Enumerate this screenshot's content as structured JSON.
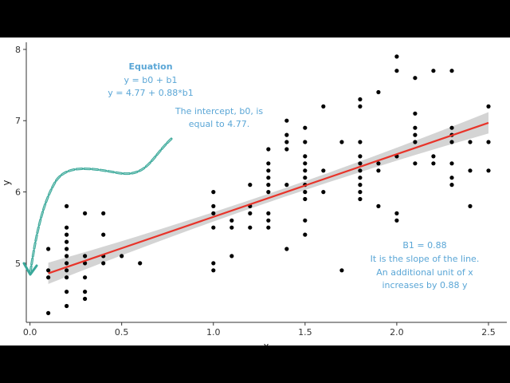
{
  "chart_data": {
    "type": "scatter",
    "title": "",
    "xlabel": "x",
    "ylabel": "y",
    "xlim": [
      -0.02,
      2.6
    ],
    "ylim": [
      4.17,
      8.1
    ],
    "x_ticks": [
      0.0,
      0.5,
      1.0,
      1.5,
      2.0,
      2.5
    ],
    "x_tick_labels": [
      "0.0",
      "0.5",
      "1.0",
      "1.5",
      "2.0",
      "2.5"
    ],
    "y_ticks": [
      5,
      6,
      7,
      8
    ],
    "y_tick_labels": [
      "5",
      "6",
      "7",
      "8"
    ],
    "grid": false,
    "points": [
      [
        0.1,
        4.3
      ],
      [
        0.1,
        4.8
      ],
      [
        0.1,
        4.9
      ],
      [
        0.1,
        5.2
      ],
      [
        0.2,
        4.4
      ],
      [
        0.2,
        4.6
      ],
      [
        0.2,
        4.8
      ],
      [
        0.2,
        4.9
      ],
      [
        0.2,
        5.0
      ],
      [
        0.2,
        5.1
      ],
      [
        0.2,
        5.2
      ],
      [
        0.2,
        5.3
      ],
      [
        0.2,
        5.4
      ],
      [
        0.2,
        5.5
      ],
      [
        0.2,
        5.8
      ],
      [
        0.3,
        4.5
      ],
      [
        0.3,
        4.6
      ],
      [
        0.3,
        4.8
      ],
      [
        0.3,
        5.0
      ],
      [
        0.3,
        5.1
      ],
      [
        0.3,
        5.7
      ],
      [
        0.4,
        5.0
      ],
      [
        0.4,
        5.1
      ],
      [
        0.4,
        5.4
      ],
      [
        0.4,
        5.7
      ],
      [
        0.5,
        5.1
      ],
      [
        0.6,
        5.0
      ],
      [
        1.0,
        4.9
      ],
      [
        1.0,
        5.0
      ],
      [
        1.0,
        5.5
      ],
      [
        1.0,
        5.7
      ],
      [
        1.0,
        5.8
      ],
      [
        1.0,
        6.0
      ],
      [
        1.1,
        5.1
      ],
      [
        1.1,
        5.5
      ],
      [
        1.1,
        5.6
      ],
      [
        1.2,
        5.5
      ],
      [
        1.2,
        5.7
      ],
      [
        1.2,
        5.8
      ],
      [
        1.2,
        6.1
      ],
      [
        1.3,
        5.5
      ],
      [
        1.3,
        5.6
      ],
      [
        1.3,
        5.7
      ],
      [
        1.3,
        6.0
      ],
      [
        1.3,
        6.1
      ],
      [
        1.3,
        6.2
      ],
      [
        1.3,
        6.3
      ],
      [
        1.3,
        6.4
      ],
      [
        1.3,
        6.6
      ],
      [
        1.4,
        5.2
      ],
      [
        1.4,
        6.1
      ],
      [
        1.4,
        6.6
      ],
      [
        1.4,
        6.7
      ],
      [
        1.4,
        6.8
      ],
      [
        1.4,
        7.0
      ],
      [
        1.5,
        5.4
      ],
      [
        1.5,
        5.6
      ],
      [
        1.5,
        5.9
      ],
      [
        1.5,
        6.0
      ],
      [
        1.5,
        6.1
      ],
      [
        1.5,
        6.2
      ],
      [
        1.5,
        6.3
      ],
      [
        1.5,
        6.4
      ],
      [
        1.5,
        6.5
      ],
      [
        1.5,
        6.7
      ],
      [
        1.5,
        6.9
      ],
      [
        1.6,
        6.0
      ],
      [
        1.6,
        6.3
      ],
      [
        1.6,
        7.2
      ],
      [
        1.7,
        4.9
      ],
      [
        1.7,
        6.7
      ],
      [
        1.8,
        5.9
      ],
      [
        1.8,
        6.0
      ],
      [
        1.8,
        6.1
      ],
      [
        1.8,
        6.2
      ],
      [
        1.8,
        6.3
      ],
      [
        1.8,
        6.4
      ],
      [
        1.8,
        6.5
      ],
      [
        1.8,
        6.7
      ],
      [
        1.8,
        7.2
      ],
      [
        1.8,
        7.3
      ],
      [
        1.9,
        5.8
      ],
      [
        1.9,
        6.3
      ],
      [
        1.9,
        6.4
      ],
      [
        1.9,
        7.4
      ],
      [
        2.0,
        5.6
      ],
      [
        2.0,
        5.7
      ],
      [
        2.0,
        6.5
      ],
      [
        2.0,
        7.7
      ],
      [
        2.0,
        7.9
      ],
      [
        2.1,
        6.4
      ],
      [
        2.1,
        6.7
      ],
      [
        2.1,
        6.8
      ],
      [
        2.1,
        6.9
      ],
      [
        2.1,
        7.1
      ],
      [
        2.1,
        7.6
      ],
      [
        2.2,
        6.4
      ],
      [
        2.2,
        6.5
      ],
      [
        2.2,
        7.7
      ],
      [
        2.3,
        6.1
      ],
      [
        2.3,
        6.2
      ],
      [
        2.3,
        6.4
      ],
      [
        2.3,
        6.7
      ],
      [
        2.3,
        6.8
      ],
      [
        2.3,
        6.9
      ],
      [
        2.3,
        7.7
      ],
      [
        2.4,
        5.8
      ],
      [
        2.4,
        6.3
      ],
      [
        2.4,
        6.7
      ],
      [
        2.5,
        6.3
      ],
      [
        2.5,
        6.7
      ],
      [
        2.5,
        7.2
      ]
    ],
    "regression": {
      "intercept": 4.77,
      "slope": 0.88,
      "x_range": [
        0.1,
        2.5
      ],
      "ci_halfwidth_ends": 0.15,
      "ci_halfwidth_mid": 0.06,
      "line_color": "#e8342a",
      "band_color": "#cfcfcf"
    },
    "point_color": "#000000"
  },
  "annotations": {
    "equation_title": "Equation",
    "equation_general": "y = b0 + b1",
    "equation_fitted": "y = 4.77 + 0.88*b1",
    "intercept_line1": "The intercept, b0, is",
    "intercept_line2": "equal to 4.77.",
    "slope_line1": "B1 = 0.88",
    "slope_line2": "It is the slope of the line.",
    "slope_line3": "An additional unit of x",
    "slope_line4": "increases by 0.88 y",
    "text_color": "#5aa6d6",
    "arrow_color": "#3aa89a"
  }
}
